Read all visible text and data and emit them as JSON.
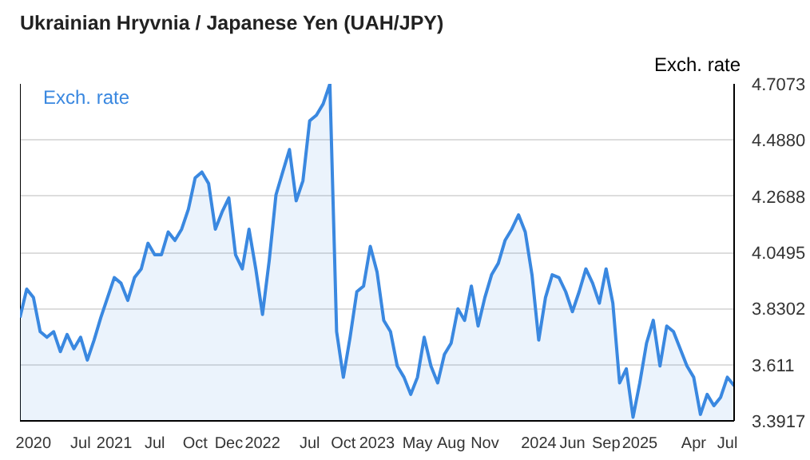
{
  "chart_data": {
    "type": "area",
    "title": "Ukrainian Hryvnia / Japanese Yen (UAH/JPY)",
    "ylabel": "Exch. rate",
    "ylim": [
      3.3917,
      4.7073
    ],
    "yticks": [
      3.3917,
      3.611,
      3.8302,
      4.0495,
      4.2688,
      {
        "value": 4.488,
        "label": "4.4880"
      },
      4.7073
    ],
    "grid": "y",
    "legend": "top left",
    "categories": [
      null,
      null,
      "2020",
      null,
      null,
      null,
      null,
      null,
      null,
      "Jul",
      null,
      null,
      null,
      null,
      "2021",
      null,
      null,
      null,
      null,
      null,
      "Jul",
      null,
      null,
      null,
      null,
      null,
      "Oct",
      null,
      null,
      null,
      null,
      "Dec",
      null,
      null,
      null,
      null,
      "2022",
      null,
      null,
      null,
      null,
      null,
      null,
      "Jul",
      null,
      null,
      null,
      null,
      "Oct",
      null,
      null,
      null,
      null,
      "2023",
      null,
      null,
      null,
      null,
      null,
      "May",
      null,
      null,
      null,
      null,
      "Aug",
      null,
      null,
      null,
      null,
      "Nov",
      null,
      null,
      null,
      null,
      null,
      null,
      null,
      "2024",
      null,
      null,
      null,
      null,
      "Jun",
      null,
      null,
      null,
      null,
      "Sep",
      null,
      null,
      null,
      null,
      "2025",
      null,
      null,
      null,
      null,
      null,
      null,
      null,
      "Apr",
      null,
      null,
      null,
      null,
      "Jul",
      null
    ],
    "series": [
      {
        "name": "Exch. rate",
        "color": "#3a88e0",
        "values": [
          3.795,
          3.906,
          3.873,
          3.74,
          3.718,
          3.74,
          3.662,
          3.729,
          3.673,
          3.718,
          3.629,
          3.707,
          3.795,
          3.873,
          3.951,
          3.929,
          3.862,
          3.951,
          3.985,
          4.085,
          4.04,
          4.04,
          4.129,
          4.096,
          4.14,
          4.218,
          4.34,
          4.363,
          4.318,
          4.14,
          4.207,
          4.262,
          4.04,
          3.985,
          4.14,
          3.985,
          3.807,
          4.018,
          4.274,
          4.363,
          4.451,
          4.251,
          4.329,
          4.563,
          4.585,
          4.629,
          4.707,
          3.74,
          3.562,
          3.718,
          3.896,
          3.918,
          4.073,
          3.973,
          3.784,
          3.74,
          3.606,
          3.562,
          3.495,
          3.562,
          3.718,
          3.606,
          3.54,
          3.651,
          3.695,
          3.829,
          3.784,
          3.918,
          3.762,
          3.873,
          3.962,
          4.007,
          4.096,
          4.14,
          4.196,
          4.129,
          3.962,
          3.707,
          3.873,
          3.962,
          3.951,
          3.896,
          3.818,
          3.896,
          3.985,
          3.929,
          3.851,
          3.985,
          3.851,
          3.54,
          3.595,
          3.406,
          3.54,
          3.695,
          3.784,
          3.606,
          3.762,
          3.74,
          3.673,
          3.606,
          3.562,
          3.417,
          3.495,
          3.451,
          3.484,
          3.562,
          3.529
        ]
      }
    ]
  }
}
